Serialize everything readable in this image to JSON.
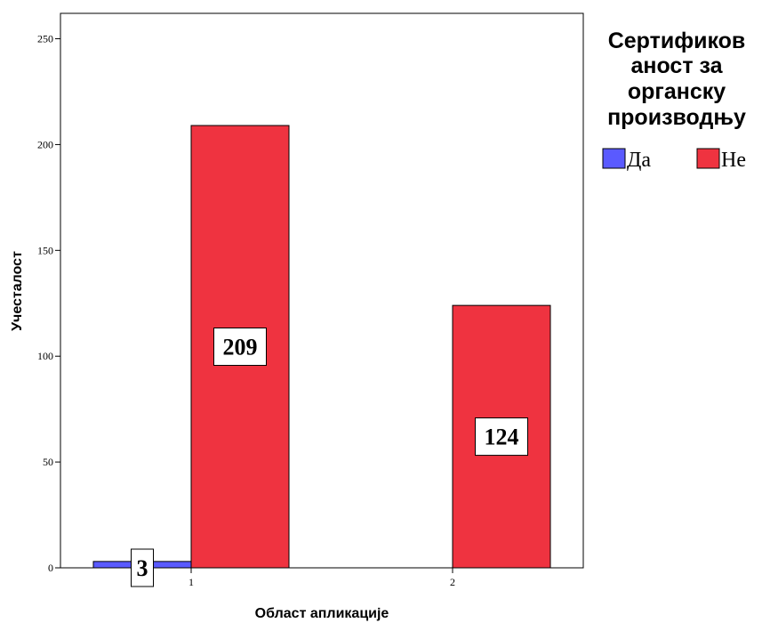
{
  "chart_data": {
    "type": "bar",
    "xlabel": "Област апликације",
    "ylabel": "Учесталост",
    "categories": [
      "1",
      "2"
    ],
    "ylim": [
      0,
      250
    ],
    "yticks": [
      0,
      50,
      100,
      150,
      200,
      250
    ],
    "grid": false,
    "legend": {
      "title": [
        "Сертификов",
        "аност за",
        "органску",
        "производњу"
      ],
      "placement": "right"
    },
    "series": [
      {
        "name": "Да",
        "color": "#5a5aff",
        "values": [
          3,
          0
        ]
      },
      {
        "name": "Не",
        "color": "#ef3340",
        "values": [
          209,
          124
        ]
      }
    ]
  }
}
